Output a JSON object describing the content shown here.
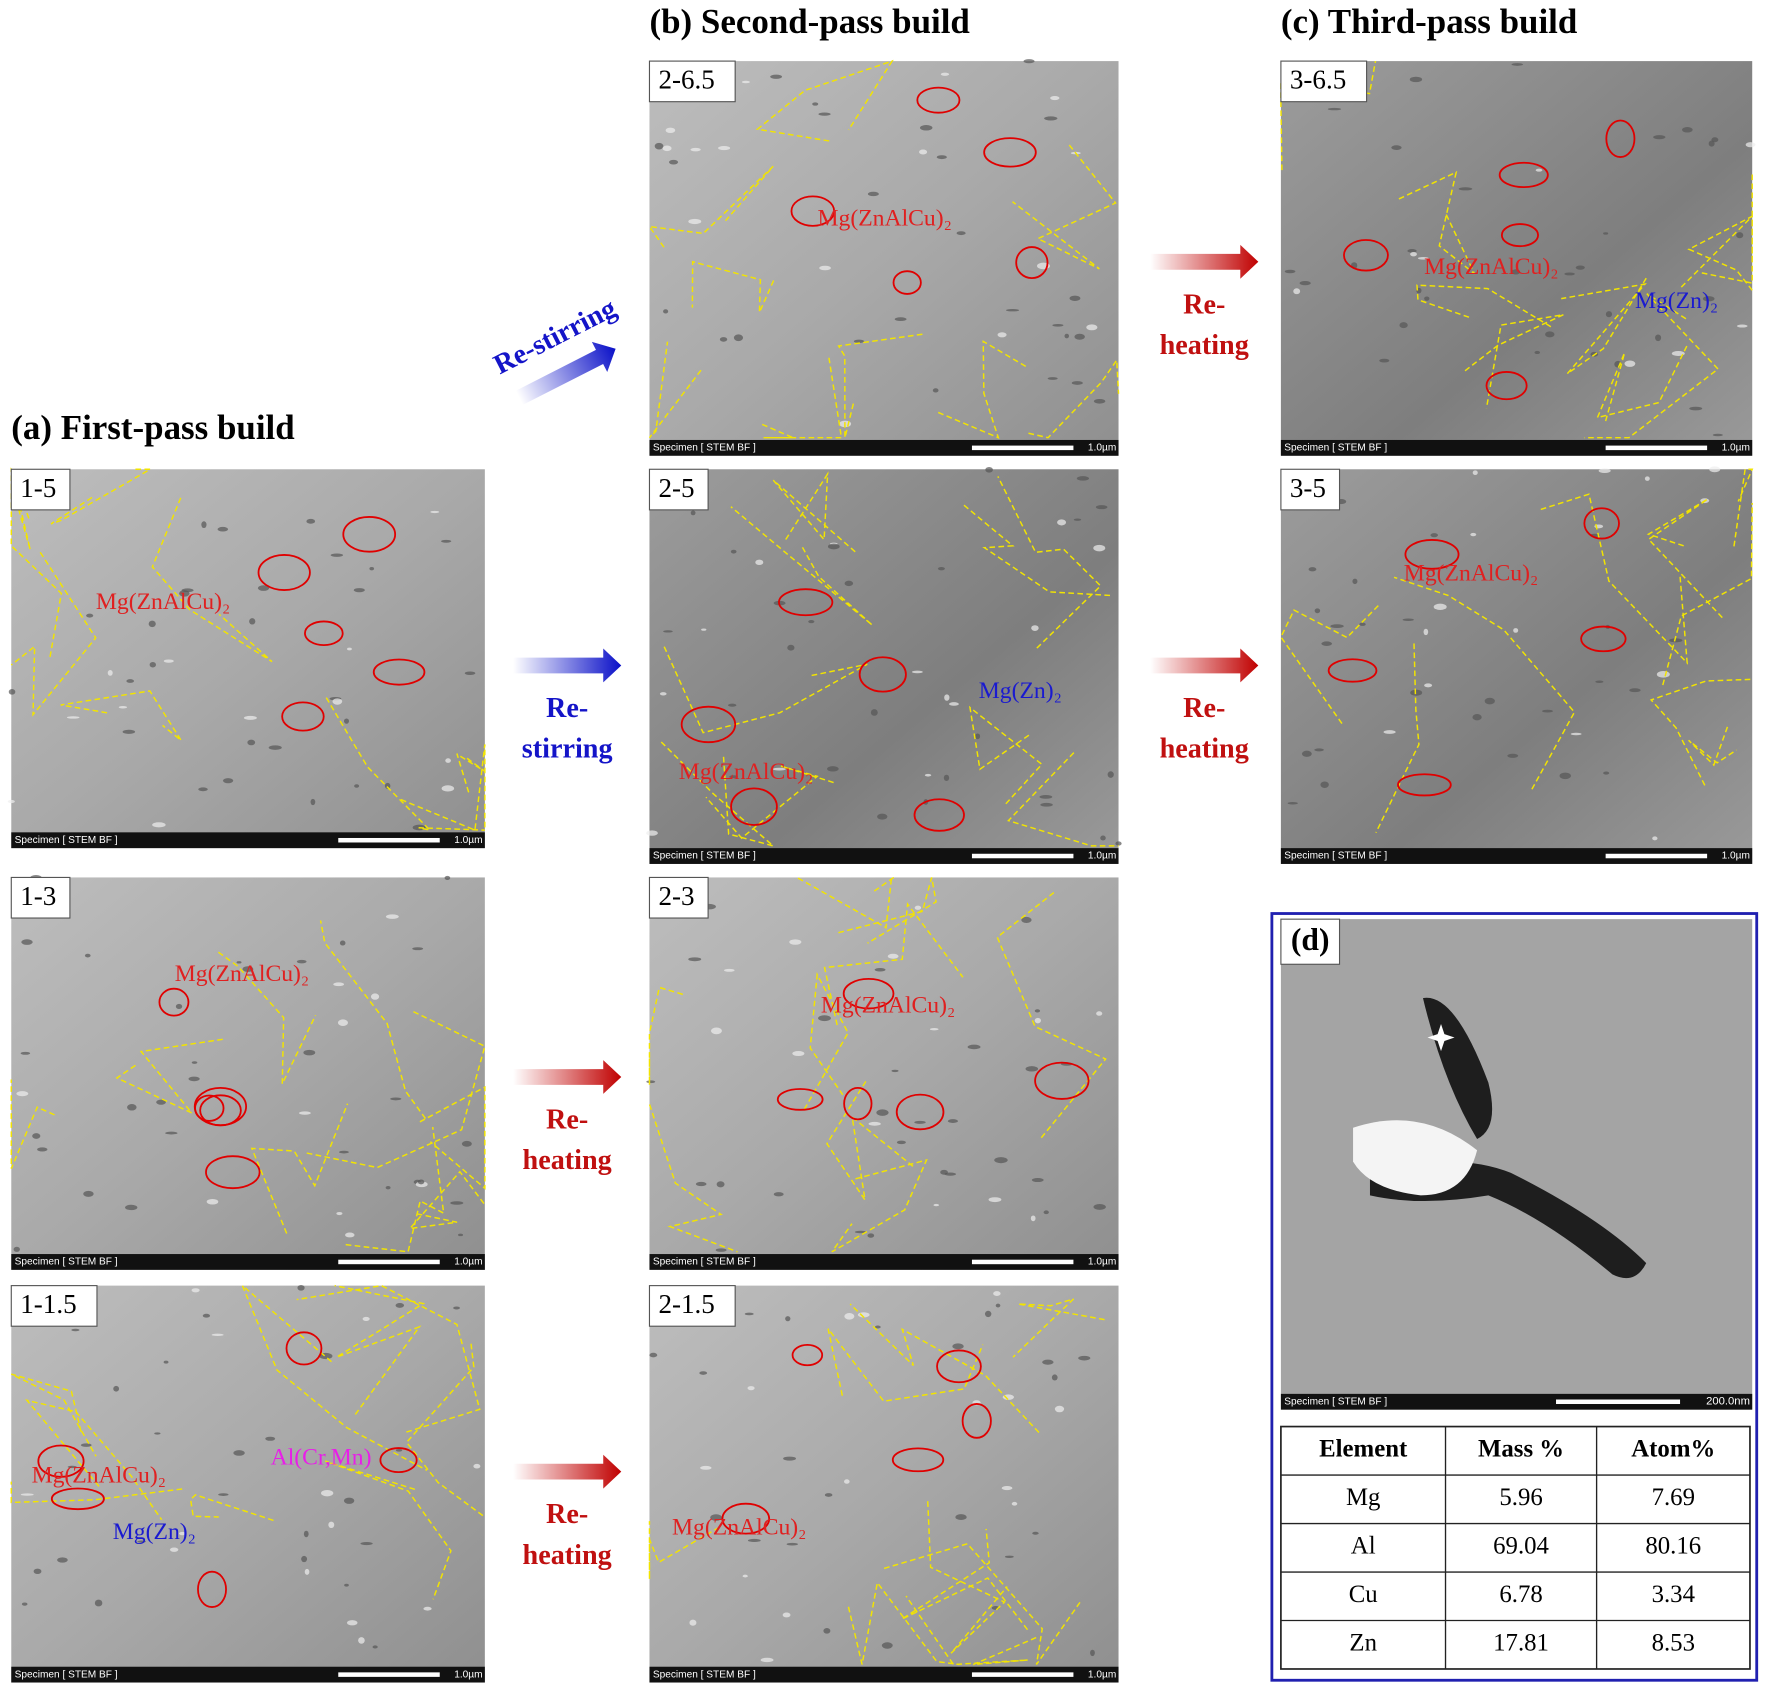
{
  "panels": [
    {
      "title": "(a) First-pass build",
      "images": [
        {
          "label": "1-5",
          "notes": [
            "Mg(ZnAlCu)₂"
          ]
        },
        {
          "label": "1-3",
          "notes": [
            "Mg(ZnAlCu)₂"
          ]
        },
        {
          "label": "1-1.5",
          "notes": [
            "Mg(ZnAlCu)₂",
            "Al(Cr,Mn)",
            "Mg(Zn)₂"
          ]
        }
      ]
    },
    {
      "title": "(b) Second-pass build",
      "images": [
        {
          "label": "2-6.5",
          "notes": [
            "Mg(ZnAlCu)₂"
          ]
        },
        {
          "label": "2-5",
          "notes": [
            "Mg(Zn)₂",
            "Mg(ZnAlCu)₂"
          ]
        },
        {
          "label": "2-3",
          "notes": [
            "Mg(ZnAlCu)₂"
          ]
        },
        {
          "label": "2-1.5",
          "notes": [
            "Mg(ZnAlCu)₂"
          ]
        }
      ]
    },
    {
      "title": "(c) Third-pass build",
      "images": [
        {
          "label": "3-6.5",
          "notes": [
            "Mg(ZnAlCu)₂",
            "Mg(Zn)₂"
          ]
        },
        {
          "label": "3-5",
          "notes": [
            "Mg(ZnAlCu)₂"
          ]
        }
      ]
    }
  ],
  "transitions": [
    {
      "lines": [
        "Re-stirring"
      ]
    },
    {
      "lines": [
        "Re-",
        "stirring"
      ]
    },
    {
      "lines": [
        "Re-",
        "heating"
      ]
    },
    {
      "lines": [
        "Re-",
        "heating"
      ]
    },
    {
      "lines": [
        "Re-",
        "heating"
      ]
    },
    {
      "lines": [
        "Re-",
        "heating"
      ]
    }
  ],
  "micrograph": {
    "source": "Specimen [ STEM BF ]",
    "scale": "1.0µm"
  },
  "detail": {
    "label": "(d)",
    "source": "Specimen [ STEM BF ]",
    "scale": "200.0nm",
    "table": {
      "header": [
        "Element",
        "Mass %",
        "Atom%"
      ],
      "rows": [
        [
          "Mg",
          "5.96",
          "7.69"
        ],
        [
          "Al",
          "69.04",
          "80.16"
        ],
        [
          "Cu",
          "6.78",
          "3.34"
        ],
        [
          "Zn",
          "17.81",
          "8.53"
        ]
      ]
    }
  }
}
